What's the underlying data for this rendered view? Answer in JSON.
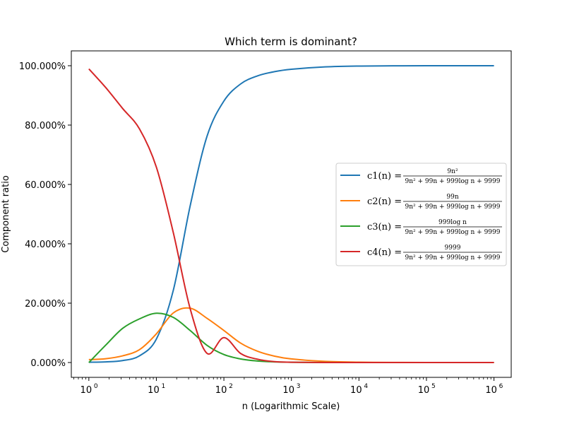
{
  "chart_data": {
    "type": "line",
    "title": "Which term is dominant?",
    "xlabel": "n (Logarithmic Scale)",
    "ylabel": "Component ratio",
    "xscale": "log",
    "xlim": [
      0.55,
      1800000.0
    ],
    "ylim": [
      -0.05,
      1.05
    ],
    "grid": false,
    "legend_placement": "center-right",
    "x_ticks": [
      {
        "value": 1,
        "base": "10",
        "exp": "0"
      },
      {
        "value": 10,
        "base": "10",
        "exp": "1"
      },
      {
        "value": 100,
        "base": "10",
        "exp": "2"
      },
      {
        "value": 1000,
        "base": "10",
        "exp": "3"
      },
      {
        "value": 10000,
        "base": "10",
        "exp": "4"
      },
      {
        "value": 100000,
        "base": "10",
        "exp": "5"
      },
      {
        "value": 1000000,
        "base": "10",
        "exp": "6"
      }
    ],
    "y_ticks": [
      {
        "value": 0,
        "label": "0.000%"
      },
      {
        "value": 0.2,
        "label": "20.000%"
      },
      {
        "value": 0.4,
        "label": "40.000%"
      },
      {
        "value": 0.6,
        "label": "60.000%"
      },
      {
        "value": 0.8,
        "label": "80.000%"
      },
      {
        "value": 1.0,
        "label": "100.000%"
      }
    ],
    "x": [
      1,
      1.78,
      3.16,
      5.62,
      10,
      17.8,
      31.6,
      56.2,
      100,
      178,
      316,
      562,
      1000,
      3160,
      10000,
      31600,
      100000,
      1000000
    ],
    "series": [
      {
        "name": "c1",
        "legend_lhs": "c1(n) =",
        "legend_num": "9n²",
        "color": "#1f77b4",
        "values": [
          0.0009,
          0.0021,
          0.0065,
          0.0225,
          0.0791,
          0.243,
          0.527,
          0.762,
          0.881,
          0.939,
          0.966,
          0.98,
          0.988,
          0.996,
          0.9989,
          0.9996,
          0.9999,
          1.0
        ]
      },
      {
        "name": "c2",
        "legend_lhs": "c2(n) =",
        "legend_num": "99n",
        "color": "#ff7f0e",
        "values": [
          0.0098,
          0.0129,
          0.0224,
          0.0433,
          0.0967,
          0.167,
          0.183,
          0.149,
          0.108,
          0.065,
          0.038,
          0.0215,
          0.0121,
          0.0038,
          0.0012,
          0.0004,
          0.0001,
          0.0
        ]
      },
      {
        "name": "c3",
        "legend_lhs": "c3(n) =",
        "legend_num": "999log n",
        "color": "#2ca02c",
        "values": [
          0.0,
          0.0587,
          0.115,
          0.147,
          0.166,
          0.152,
          0.108,
          0.058,
          0.027,
          0.012,
          0.0051,
          0.0022,
          0.001,
          0.0002,
          0.0,
          0.0,
          0.0,
          0.0
        ]
      },
      {
        "name": "c4",
        "legend_lhs": "c4(n) =",
        "legend_num": "9999",
        "color": "#d62728",
        "values": [
          0.9893,
          0.9263,
          0.8561,
          0.7872,
          0.6582,
          0.438,
          0.182,
          0.031,
          0.084,
          0.03,
          0.011,
          0.003,
          0.001,
          0.0001,
          0.0,
          0.0,
          0.0,
          0.0
        ]
      }
    ],
    "legend_den": "9n² + 99n + 999log n + 9999"
  }
}
